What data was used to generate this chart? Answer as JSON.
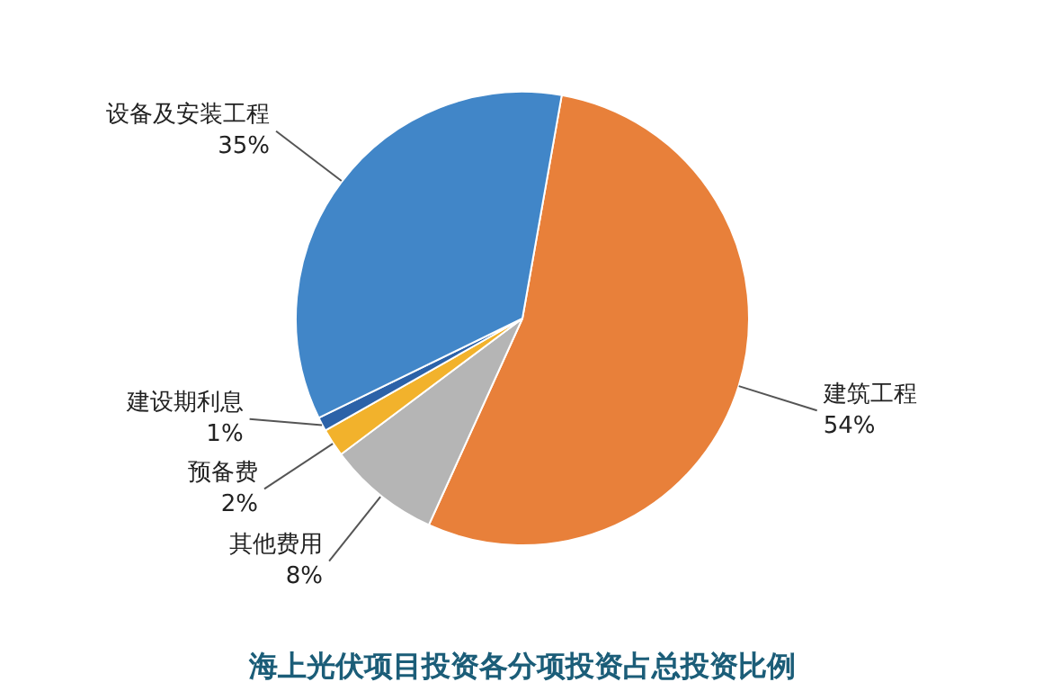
{
  "chart_data": {
    "type": "pie",
    "title": "海上光伏项目投资各分项投资占总投资比例",
    "categories": [
      "建筑工程",
      "其他费用",
      "预备费",
      "建设期利息",
      "设备及安装工程"
    ],
    "values": [
      54,
      8,
      2,
      1,
      35
    ],
    "value_labels": [
      "54%",
      "8%",
      "2%",
      "1%",
      "35%"
    ],
    "colors": [
      "#e8803a",
      "#b5b5b5",
      "#f2b22c",
      "#2c62a8",
      "#4186c8"
    ]
  }
}
